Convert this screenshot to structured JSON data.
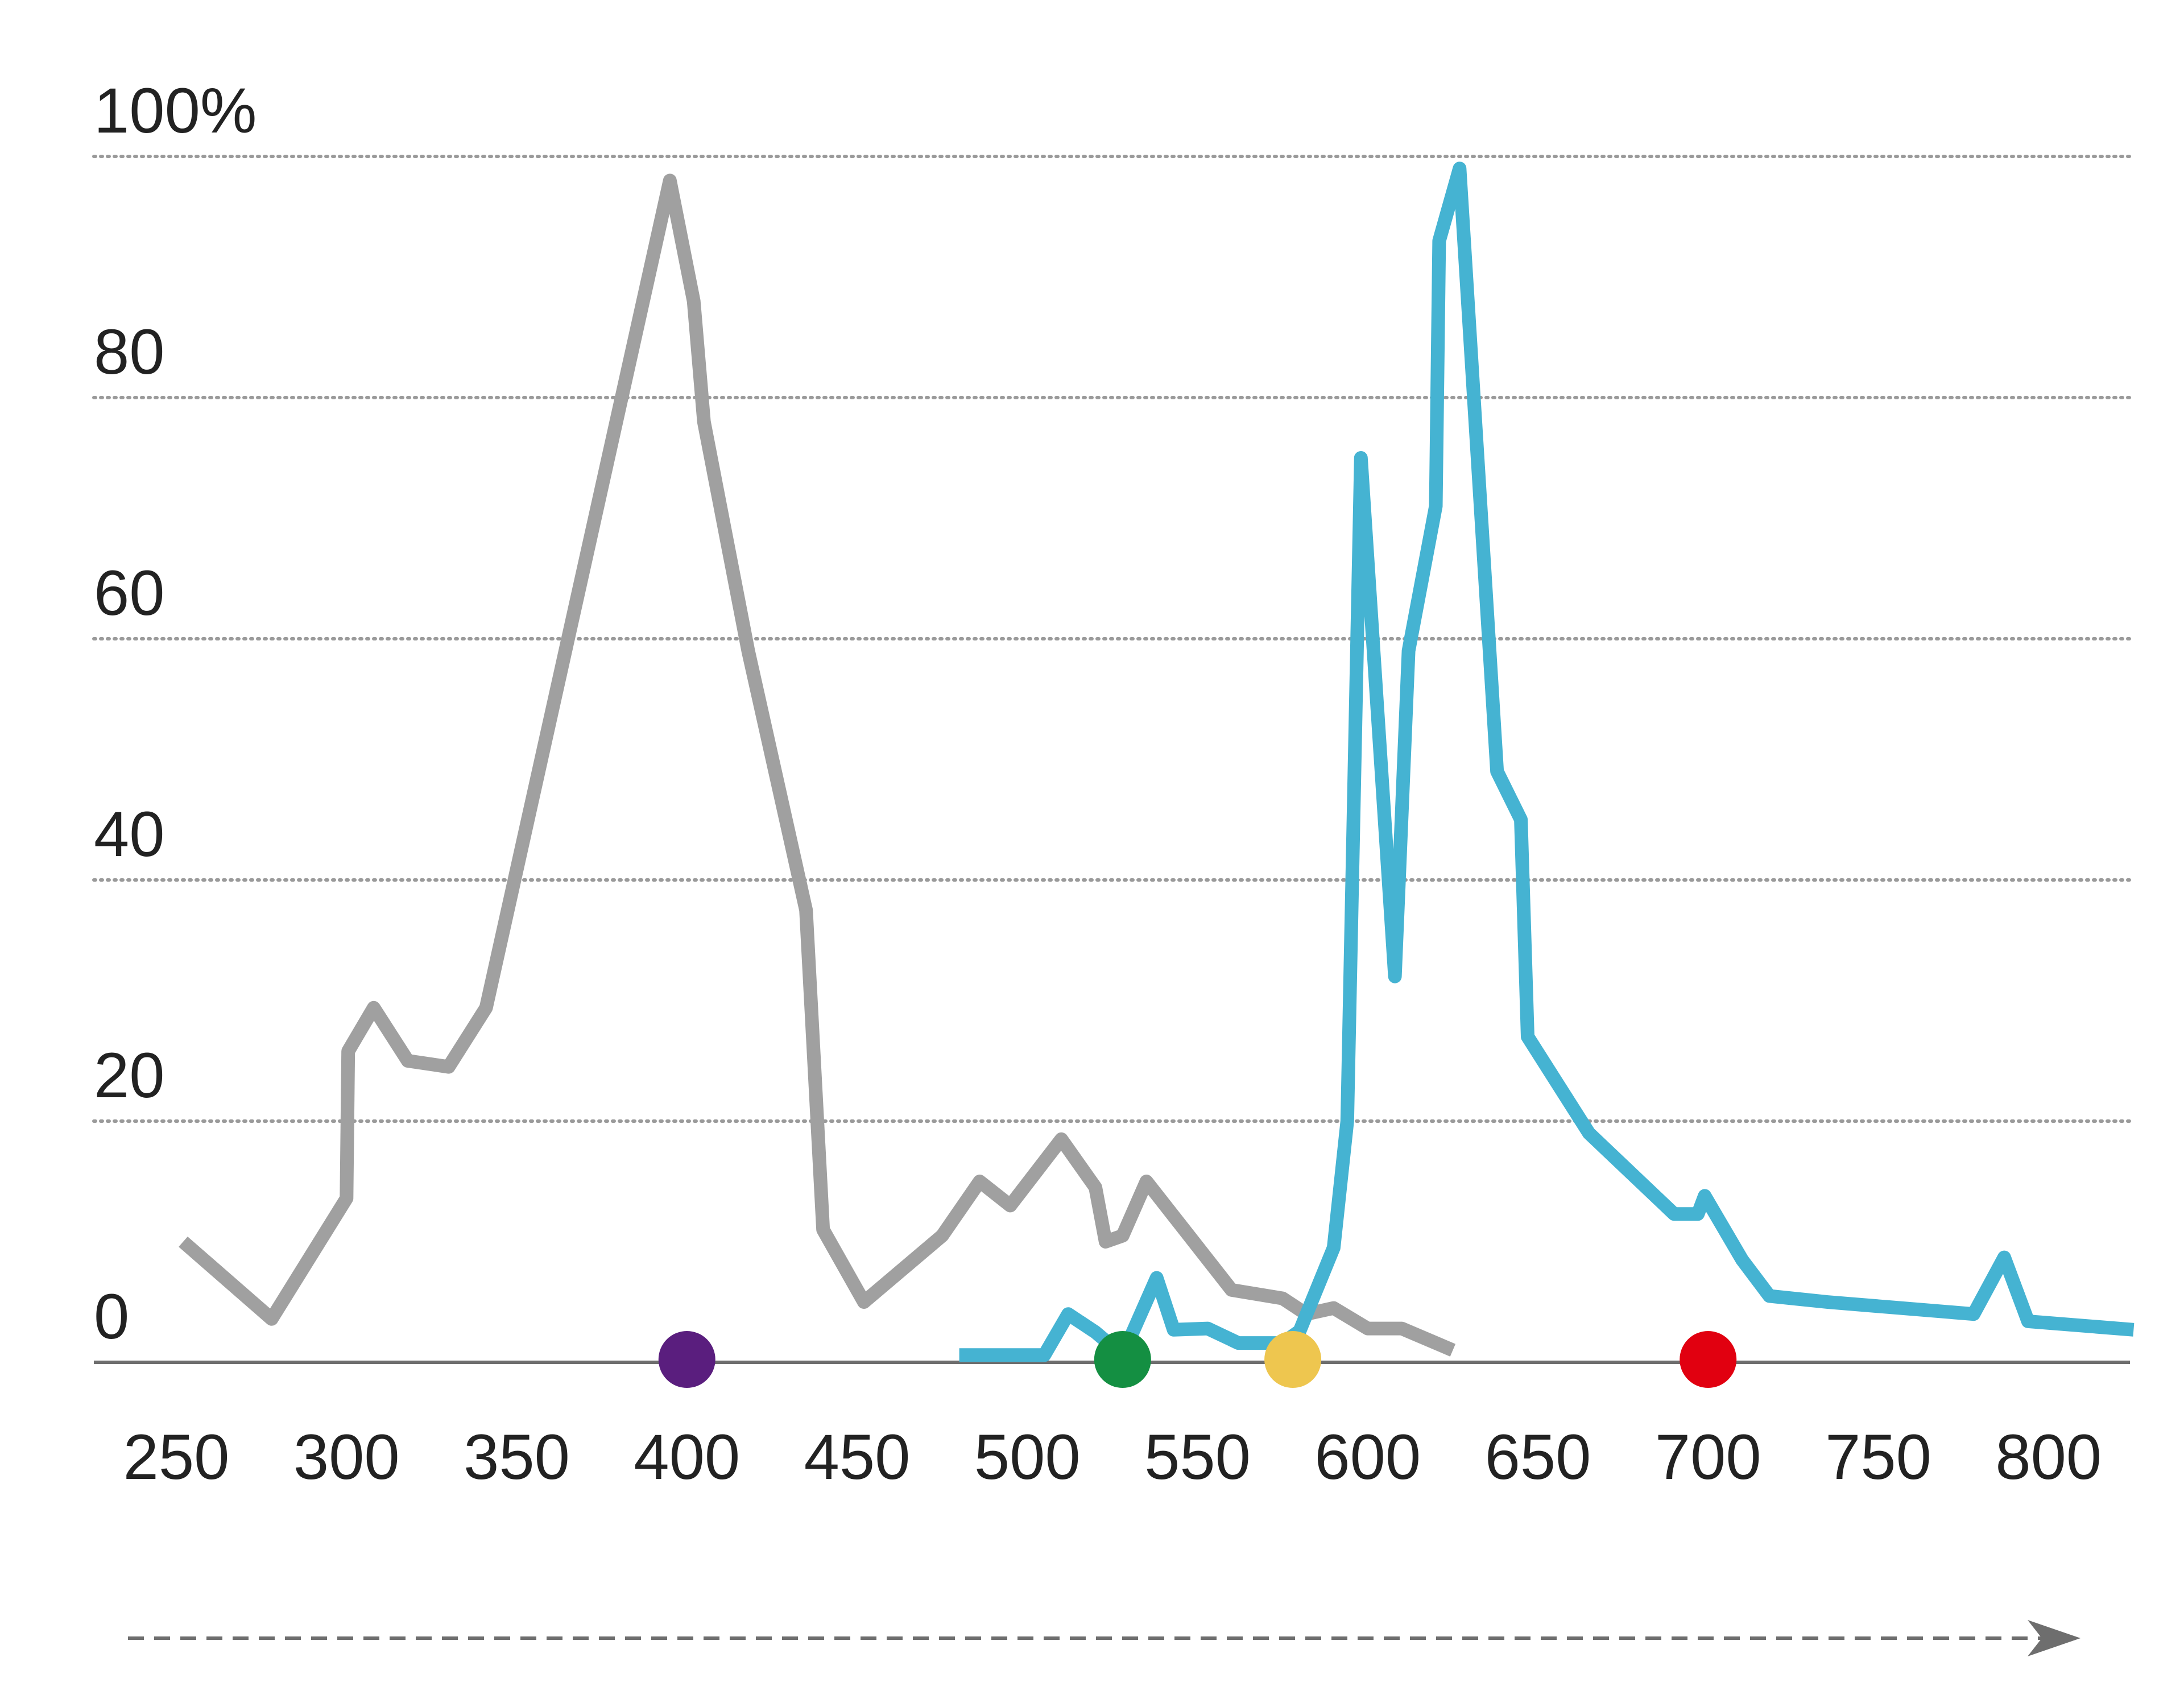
{
  "chart_data": {
    "type": "line",
    "title": "",
    "xlabel": "",
    "ylabel": "",
    "xlim": [
      250,
      825
    ],
    "ylim": [
      0,
      100
    ],
    "grid": true,
    "x_ticks": [
      "250",
      "300",
      "350",
      "400",
      "450",
      "500",
      "550",
      "600",
      "650",
      "700",
      "750",
      "800"
    ],
    "y_ticks": [
      "0",
      "20",
      "40",
      "60",
      "80",
      "100%"
    ],
    "series": [
      {
        "color": "#a0a0a0",
        "points": [
          [
            252,
            10
          ],
          [
            278,
            3.6
          ],
          [
            300,
            13.6
          ],
          [
            300.5,
            25.8
          ],
          [
            308,
            29.4
          ],
          [
            318,
            25
          ],
          [
            330,
            24.5
          ],
          [
            341,
            29.4
          ],
          [
            395,
            98
          ],
          [
            402,
            88
          ],
          [
            405,
            78
          ],
          [
            418,
            59
          ],
          [
            435,
            37.5
          ],
          [
            440,
            11
          ],
          [
            452,
            5
          ],
          [
            475,
            10.5
          ],
          [
            486,
            15
          ],
          [
            495,
            13
          ],
          [
            510,
            18.5
          ],
          [
            520,
            14.5
          ],
          [
            523,
            10
          ],
          [
            528,
            10.5
          ],
          [
            535,
            15
          ],
          [
            560,
            6
          ],
          [
            575,
            5.3
          ],
          [
            582,
            4
          ],
          [
            590,
            4.5
          ],
          [
            600,
            2.8
          ],
          [
            610,
            2.8
          ],
          [
            625,
            1
          ]
        ]
      },
      {
        "color": "#45b3d2",
        "points": [
          [
            480,
            0.6
          ],
          [
            505,
            0.6
          ],
          [
            512,
            4
          ],
          [
            520,
            2.5
          ],
          [
            528,
            0.6
          ],
          [
            538,
            7
          ],
          [
            543,
            2.7
          ],
          [
            553,
            2.8
          ],
          [
            562,
            1.6
          ],
          [
            575,
            1.6
          ],
          [
            580,
            2.6
          ],
          [
            590,
            9.5
          ],
          [
            594,
            20
          ],
          [
            598,
            75
          ],
          [
            608,
            32
          ],
          [
            612,
            59
          ],
          [
            620,
            71
          ],
          [
            621,
            93
          ],
          [
            627,
            99
          ],
          [
            638,
            49
          ],
          [
            645,
            45
          ],
          [
            647,
            27
          ],
          [
            665,
            19
          ],
          [
            690,
            12.3
          ],
          [
            697,
            12.3
          ],
          [
            699,
            13.8
          ],
          [
            710,
            8.5
          ],
          [
            718,
            5.5
          ],
          [
            735,
            5
          ],
          [
            778,
            4
          ],
          [
            787,
            8.7
          ],
          [
            794,
            3.4
          ],
          [
            825,
            2.7
          ]
        ]
      }
    ],
    "markers": [
      {
        "x": 400,
        "color": "#5a1e7e"
      },
      {
        "x": 528,
        "color": "#148f42"
      },
      {
        "x": 578,
        "color": "#eec64f"
      },
      {
        "x": 700,
        "color": "#e10010"
      }
    ],
    "axis_arrow": true
  }
}
